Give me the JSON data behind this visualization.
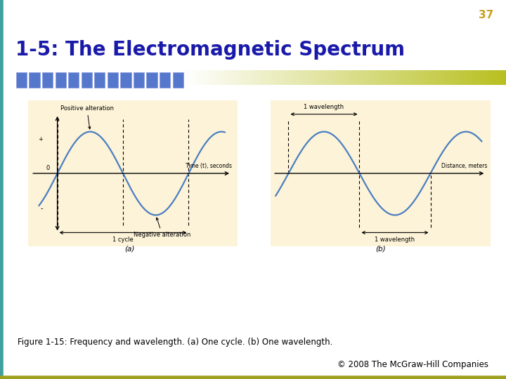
{
  "title": "1-5: The Electromagnetic Spectrum",
  "slide_number": "37",
  "title_color": "#1a1aaa",
  "slide_num_color": "#c8a020",
  "bar_color": "#5577cc",
  "olive_color": "#b8c020",
  "panel_bg": "#fdf3d8",
  "wave_color": "#4a7fc1",
  "fig_bg": "#ffffff",
  "border_teal": "#40a0a0",
  "border_olive_bottom": "#a0a020",
  "caption": "Figure 1-15: Frequency and wavelength. (a) One cycle. (b) One wavelength.",
  "copyright": "© 2008 The McGraw-Hill Companies"
}
